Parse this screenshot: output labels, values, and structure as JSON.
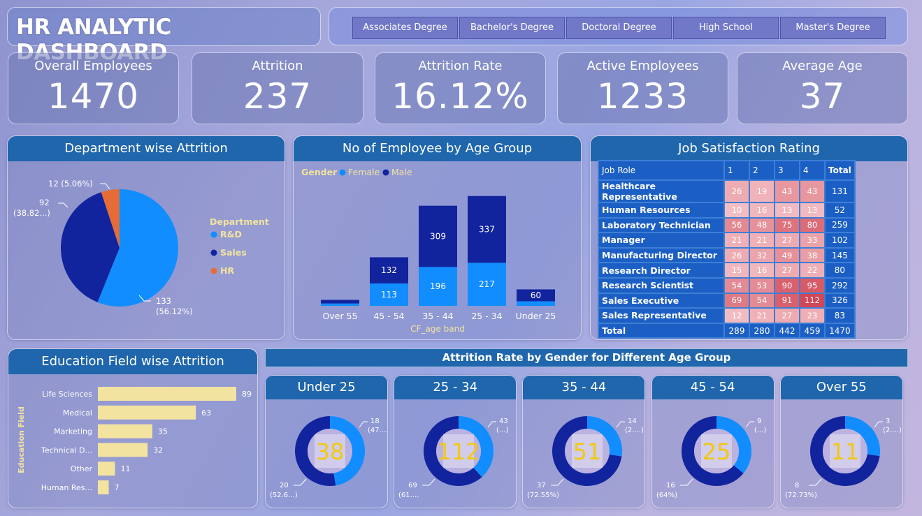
{
  "title": "HR ANALYTIC DASHBOARD",
  "slicers": [
    "Associates Degree",
    "Bachelor's Degree",
    "Doctoral Degree",
    "High School",
    "Master's Degree"
  ],
  "kpis": [
    {
      "label": "Overall Employees",
      "value": "1470"
    },
    {
      "label": "Attrition",
      "value": "237"
    },
    {
      "label": "Attrition Rate",
      "value": "16.12%"
    },
    {
      "label": "Active Employees",
      "value": "1233"
    },
    {
      "label": "Average Age",
      "value": "37"
    }
  ],
  "dept": {
    "title": "Department wise Attrition",
    "legend_title": "Department",
    "slices": [
      {
        "name": "R&D",
        "value": 133,
        "label": "133",
        "pct": "(56.12%)",
        "color": "#118dff"
      },
      {
        "name": "Sales",
        "value": 92,
        "label": "92",
        "pct": "(38.82...)",
        "color": "#12239e"
      },
      {
        "name": "HR",
        "value": 12,
        "label": "12 (5.06%)",
        "pct": "",
        "color": "#e66c37"
      }
    ]
  },
  "age": {
    "title": "No of Employee by Age Group",
    "legend_title": "Gender",
    "legend": [
      {
        "name": "Female",
        "color": "#118dff"
      },
      {
        "name": "Male",
        "color": "#12239e"
      }
    ],
    "xlabel": "CF_age band",
    "categories": [
      "Over 55",
      "45 - 54",
      "35 - 44",
      "25 - 34",
      "Under 25"
    ],
    "female": [
      12,
      113,
      196,
      217,
      23
    ],
    "male": [
      18,
      132,
      309,
      337,
      60
    ],
    "female_labels": [
      "",
      "113",
      "196",
      "217",
      ""
    ],
    "male_labels": [
      "",
      "132",
      "309",
      "337",
      "60"
    ]
  },
  "jobsat": {
    "title": "Job Satisfaction Rating",
    "headers": [
      "Job Role",
      "1",
      "2",
      "3",
      "4",
      "Total"
    ],
    "rows": [
      {
        "role": "Healthcare Representative",
        "v": [
          "26",
          "19",
          "43",
          "43"
        ],
        "total": "131"
      },
      {
        "role": "Human Resources",
        "v": [
          "10",
          "16",
          "13",
          "13"
        ],
        "total": "52"
      },
      {
        "role": "Laboratory Technician",
        "v": [
          "56",
          "48",
          "75",
          "80"
        ],
        "total": "259"
      },
      {
        "role": "Manager",
        "v": [
          "21",
          "21",
          "27",
          "33"
        ],
        "total": "102"
      },
      {
        "role": "Manufacturing Director",
        "v": [
          "26",
          "32",
          "49",
          "38"
        ],
        "total": "145"
      },
      {
        "role": "Research Director",
        "v": [
          "15",
          "16",
          "27",
          "22"
        ],
        "total": "80"
      },
      {
        "role": "Research Scientist",
        "v": [
          "54",
          "53",
          "90",
          "95"
        ],
        "total": "292"
      },
      {
        "role": "Sales Executive",
        "v": [
          "69",
          "54",
          "91",
          "112"
        ],
        "total": "326"
      },
      {
        "role": "Sales Representative",
        "v": [
          "12",
          "21",
          "27",
          "23"
        ],
        "total": "83"
      }
    ],
    "total_row": {
      "role": "Total",
      "v": [
        "289",
        "280",
        "442",
        "459"
      ],
      "total": "1470"
    }
  },
  "edu": {
    "title": "Education Field wise Attrition",
    "ylabel": "Education Field",
    "categories": [
      "Life Sciences",
      "Medical",
      "Marketing",
      "Technical D...",
      "Other",
      "Human Res..."
    ],
    "values": [
      89,
      63,
      35,
      32,
      11,
      7
    ],
    "bar_color": "#f2e3a0"
  },
  "gender_rate": {
    "title": "Attrition Rate by Gender for Different Age Group",
    "groups": [
      {
        "name": "Under 25",
        "total": "38",
        "female": 18,
        "male": 20,
        "female_label": "18",
        "female_pct": "(47....)",
        "male_label": "20",
        "male_pct": "(52.6...)"
      },
      {
        "name": "25 - 34",
        "total": "112",
        "female": 43,
        "male": 69,
        "female_label": "43",
        "female_pct": "(...)",
        "male_label": "69",
        "male_pct": "(61...."
      },
      {
        "name": "35 - 44",
        "total": "51",
        "female": 14,
        "male": 37,
        "female_label": "14",
        "female_pct": "(2....)",
        "male_label": "37",
        "male_pct": "(72.55%)"
      },
      {
        "name": "45 - 54",
        "total": "25",
        "female": 9,
        "male": 16,
        "female_label": "9",
        "female_pct": "(...)",
        "male_label": "16",
        "male_pct": "(64%)"
      },
      {
        "name": "Over 55",
        "total": "11",
        "female": 3,
        "male": 8,
        "female_label": "3",
        "female_pct": "(2....)",
        "male_label": "8",
        "male_pct": "(72.73%)"
      }
    ]
  }
}
